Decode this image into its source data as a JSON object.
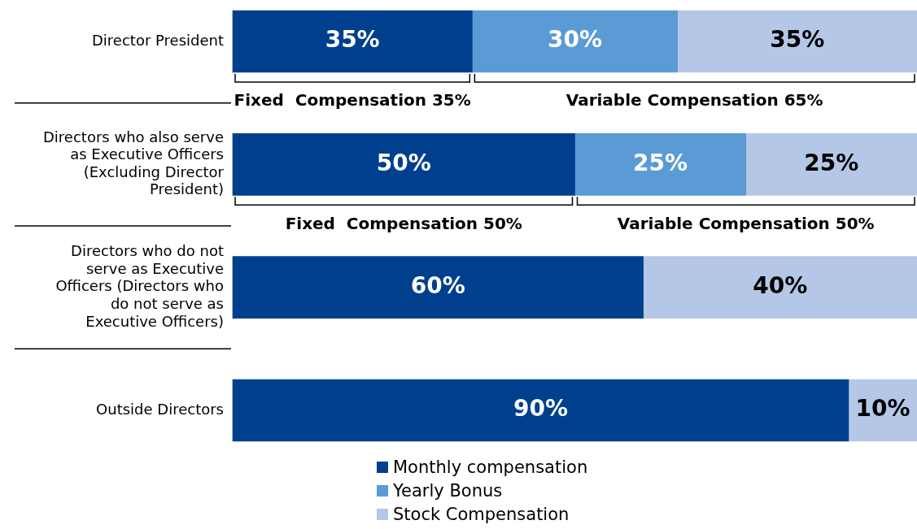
{
  "chart_data": {
    "type": "bar",
    "orientation": "horizontal",
    "stacked": true,
    "categories": [
      "Director President",
      "Directors who also serve as Executive Officers (Excluding Director President)",
      "Directors who do not serve as Executive Officers (Directors who do not serve as Executive Officers)",
      "Outside Directors"
    ],
    "series": [
      {
        "name": "Monthly compensation",
        "color": "#003f8e",
        "values": [
          35,
          50,
          60,
          90
        ],
        "value_labels": [
          "35%",
          "50%",
          "60%",
          "90%"
        ]
      },
      {
        "name": "Yearly Bonus",
        "color": "#5b9bd5",
        "values": [
          30,
          25,
          null,
          null
        ],
        "value_labels": [
          "30%",
          "25%",
          null,
          null
        ]
      },
      {
        "name": "Stock Compensation",
        "color": "#b4c7e7",
        "values": [
          35,
          25,
          40,
          10
        ],
        "value_labels": [
          "35%",
          "25%",
          "40%",
          "10%"
        ]
      }
    ],
    "tick_labels": "y",
    "grid": false,
    "legend": "bottom",
    "annotations": [
      "Fixed  Compensation 35%",
      "Variable Compensation 65%",
      "Fixed  Compensation 50%",
      "Variable Compensation 50%"
    ]
  }
}
